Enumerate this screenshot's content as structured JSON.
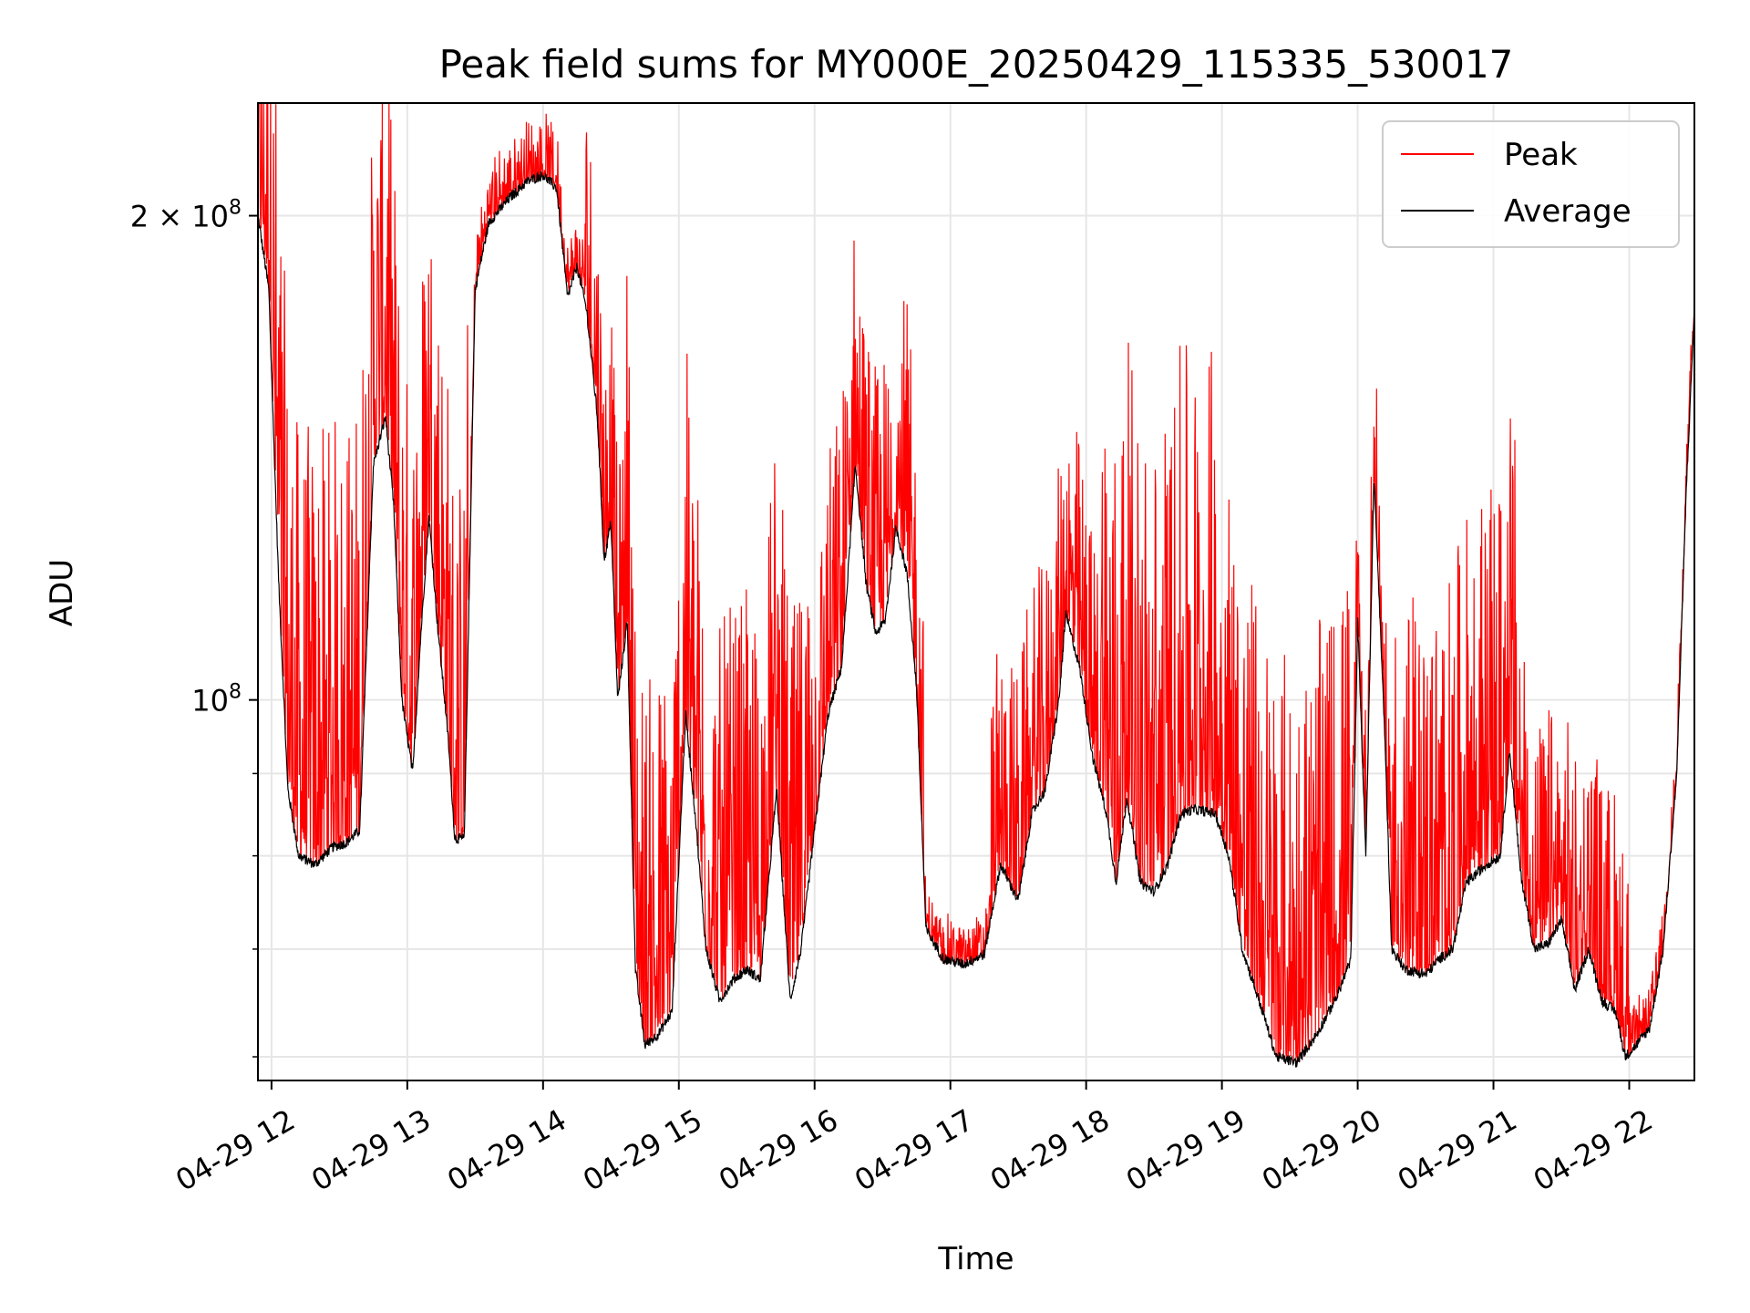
{
  "chart_data": {
    "type": "line",
    "title": "Peak field sums for MY000E_20250429_115335_530017",
    "xlabel": "Time",
    "ylabel": "ADU",
    "yscale": "log",
    "ylim": [
      58000000,
      235000000
    ],
    "xlim": [
      11.9,
      22.48
    ],
    "grid": true,
    "legend": {
      "position": "upper right",
      "entries": [
        "Peak",
        "Average"
      ]
    },
    "x_ticks": [
      {
        "hour": 12,
        "label": "04-29 12"
      },
      {
        "hour": 13,
        "label": "04-29 13"
      },
      {
        "hour": 14,
        "label": "04-29 14"
      },
      {
        "hour": 15,
        "label": "04-29 15"
      },
      {
        "hour": 16,
        "label": "04-29 16"
      },
      {
        "hour": 17,
        "label": "04-29 17"
      },
      {
        "hour": 18,
        "label": "04-29 18"
      },
      {
        "hour": 19,
        "label": "04-29 19"
      },
      {
        "hour": 20,
        "label": "04-29 20"
      },
      {
        "hour": 21,
        "label": "04-29 21"
      },
      {
        "hour": 22,
        "label": "04-29 22"
      }
    ],
    "y_ticks_major": [
      {
        "value": 100000000,
        "base": "10",
        "exp": "8",
        "coef": ""
      },
      {
        "value": 200000000,
        "base": "10",
        "exp": "8",
        "coef": "2 × "
      }
    ],
    "y_ticks_minor": [
      60000000,
      70000000,
      80000000,
      90000000
    ],
    "series": [
      {
        "name": "Average",
        "color": "#000000",
        "points": [
          [
            11.9,
            200000000
          ],
          [
            11.98,
            180000000
          ],
          [
            12.05,
            120000000
          ],
          [
            12.12,
            88000000
          ],
          [
            12.2,
            80000000
          ],
          [
            12.32,
            79000000
          ],
          [
            12.45,
            81000000
          ],
          [
            12.55,
            81500000
          ],
          [
            12.65,
            83000000
          ],
          [
            12.75,
            140000000
          ],
          [
            12.84,
            150000000
          ],
          [
            12.9,
            132000000
          ],
          [
            12.96,
            100000000
          ],
          [
            13.04,
            90000000
          ],
          [
            13.1,
            110000000
          ],
          [
            13.16,
            130000000
          ],
          [
            13.22,
            112000000
          ],
          [
            13.3,
            95000000
          ],
          [
            13.35,
            82000000
          ],
          [
            13.42,
            82000000
          ],
          [
            13.5,
            180000000
          ],
          [
            13.6,
            198000000
          ],
          [
            13.75,
            205000000
          ],
          [
            13.88,
            210000000
          ],
          [
            14.0,
            212000000
          ],
          [
            14.1,
            208000000
          ],
          [
            14.18,
            178000000
          ],
          [
            14.25,
            186000000
          ],
          [
            14.32,
            175000000
          ],
          [
            14.4,
            150000000
          ],
          [
            14.45,
            122000000
          ],
          [
            14.5,
            129000000
          ],
          [
            14.55,
            100000000
          ],
          [
            14.62,
            112000000
          ],
          [
            14.68,
            68000000
          ],
          [
            14.75,
            61000000
          ],
          [
            14.85,
            62000000
          ],
          [
            14.95,
            64000000
          ],
          [
            15.05,
            98000000
          ],
          [
            15.12,
            85000000
          ],
          [
            15.2,
            70000000
          ],
          [
            15.3,
            65000000
          ],
          [
            15.4,
            67000000
          ],
          [
            15.5,
            68000000
          ],
          [
            15.6,
            67000000
          ],
          [
            15.72,
            88000000
          ],
          [
            15.82,
            65000000
          ],
          [
            15.9,
            70000000
          ],
          [
            16.0,
            83000000
          ],
          [
            16.1,
            98000000
          ],
          [
            16.2,
            105000000
          ],
          [
            16.3,
            140000000
          ],
          [
            16.38,
            118000000
          ],
          [
            16.45,
            110000000
          ],
          [
            16.52,
            112000000
          ],
          [
            16.6,
            128000000
          ],
          [
            16.68,
            120000000
          ],
          [
            16.75,
            102000000
          ],
          [
            16.82,
            72000000
          ],
          [
            16.95,
            69000000
          ],
          [
            17.1,
            68500000
          ],
          [
            17.25,
            69500000
          ],
          [
            17.37,
            79000000
          ],
          [
            17.5,
            75000000
          ],
          [
            17.6,
            85000000
          ],
          [
            17.7,
            88000000
          ],
          [
            17.8,
            100000000
          ],
          [
            17.85,
            113000000
          ],
          [
            17.95,
            105000000
          ],
          [
            18.05,
            92000000
          ],
          [
            18.15,
            85000000
          ],
          [
            18.22,
            77000000
          ],
          [
            18.3,
            87000000
          ],
          [
            18.4,
            77000000
          ],
          [
            18.5,
            76000000
          ],
          [
            18.6,
            79000000
          ],
          [
            18.7,
            85000000
          ],
          [
            18.8,
            85500000
          ],
          [
            18.95,
            85000000
          ],
          [
            19.05,
            80000000
          ],
          [
            19.15,
            70000000
          ],
          [
            19.3,
            64000000
          ],
          [
            19.4,
            60000000
          ],
          [
            19.55,
            59500000
          ],
          [
            19.7,
            62000000
          ],
          [
            19.85,
            65500000
          ],
          [
            19.95,
            69000000
          ],
          [
            20.0,
            112000000
          ],
          [
            20.06,
            80000000
          ],
          [
            20.12,
            138000000
          ],
          [
            20.2,
            95000000
          ],
          [
            20.25,
            70000000
          ],
          [
            20.35,
            68000000
          ],
          [
            20.5,
            67500000
          ],
          [
            20.6,
            69000000
          ],
          [
            20.7,
            70000000
          ],
          [
            20.8,
            77000000
          ],
          [
            20.95,
            79000000
          ],
          [
            21.05,
            80000000
          ],
          [
            21.12,
            93000000
          ],
          [
            21.2,
            78000000
          ],
          [
            21.3,
            70000000
          ],
          [
            21.4,
            70500000
          ],
          [
            21.5,
            73000000
          ],
          [
            21.6,
            66000000
          ],
          [
            21.7,
            70000000
          ],
          [
            21.8,
            65000000
          ],
          [
            21.9,
            64000000
          ],
          [
            21.97,
            60000000
          ],
          [
            22.05,
            61000000
          ],
          [
            22.15,
            62500000
          ],
          [
            22.25,
            70000000
          ],
          [
            22.35,
            90000000
          ],
          [
            22.42,
            135000000
          ],
          [
            22.48,
            175000000
          ]
        ]
      },
      {
        "name": "Peak",
        "color": "#ff0000",
        "points": []
      }
    ]
  }
}
